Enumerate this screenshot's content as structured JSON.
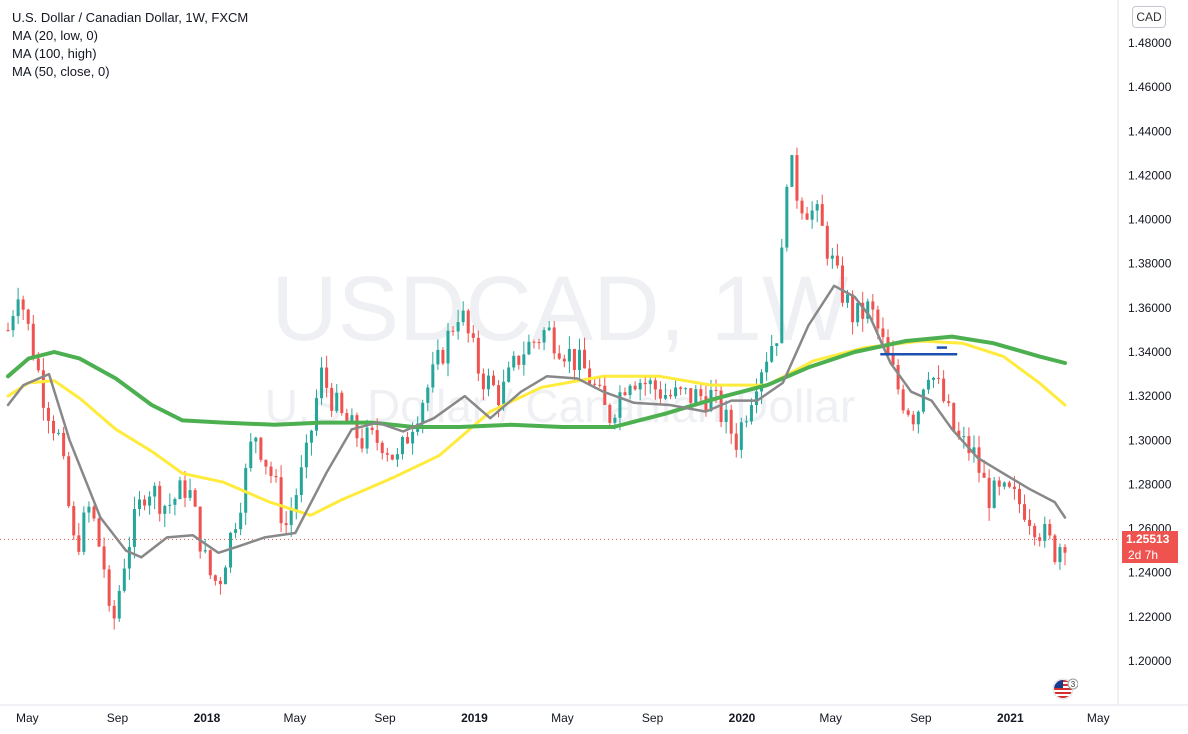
{
  "legend": {
    "title": "U.S. Dollar / Canadian Dollar, 1W, FXCM",
    "indicators": [
      "MA (20, low, 0)",
      "MA (100, high)",
      "MA (50, close, 0)"
    ]
  },
  "watermark": {
    "symbol": "USDCAD, 1W",
    "description": "U.S. Dollar / Canadian Dollar"
  },
  "currency_button": "CAD",
  "last_price": {
    "value": "1.25513",
    "countdown": "2d 7h",
    "color": "#ef5350"
  },
  "flag_badge": "3",
  "colors": {
    "up": "#26a69a",
    "down": "#ef5350",
    "ma20": "#888888",
    "ma100": "#4caf50",
    "ma50": "#ffeb3b",
    "hline": "#1e50b4"
  },
  "chart_data": {
    "type": "candlestick",
    "yaxis": {
      "min": 1.18,
      "max": 1.49,
      "ticks": [
        "1.48000",
        "1.46000",
        "1.44000",
        "1.42000",
        "1.40000",
        "1.38000",
        "1.36000",
        "1.34000",
        "1.32000",
        "1.30000",
        "1.28000",
        "1.26000",
        "1.24000",
        "1.22000",
        "1.20000"
      ]
    },
    "xaxis": {
      "ticks": [
        "May",
        "Sep",
        "2018",
        "May",
        "Sep",
        "2019",
        "May",
        "Sep",
        "2020",
        "May",
        "Sep",
        "2021",
        "May"
      ]
    },
    "close_path": [
      [
        "2017-04-21",
        1.35
      ],
      [
        "2017-05-05",
        1.37
      ],
      [
        "2017-05-19",
        1.35
      ],
      [
        "2017-06-09",
        1.32
      ],
      [
        "2017-06-30",
        1.3
      ],
      [
        "2017-07-21",
        1.25
      ],
      [
        "2017-08-11",
        1.27
      ],
      [
        "2017-09-01",
        1.24
      ],
      [
        "2017-09-08",
        1.21
      ],
      [
        "2017-09-29",
        1.25
      ],
      [
        "2017-10-27",
        1.28
      ],
      [
        "2017-11-24",
        1.27
      ],
      [
        "2017-12-22",
        1.28
      ],
      [
        "2018-01-19",
        1.24
      ],
      [
        "2018-02-02",
        1.235
      ],
      [
        "2018-03-09",
        1.28
      ],
      [
        "2018-03-23",
        1.305
      ],
      [
        "2018-04-20",
        1.28
      ],
      [
        "2018-05-04",
        1.26
      ],
      [
        "2018-06-01",
        1.29
      ],
      [
        "2018-06-22",
        1.33
      ],
      [
        "2018-07-20",
        1.31
      ],
      [
        "2018-08-17",
        1.3
      ],
      [
        "2018-09-14",
        1.3
      ],
      [
        "2018-10-05",
        1.29
      ],
      [
        "2018-10-26",
        1.31
      ],
      [
        "2018-11-23",
        1.33
      ],
      [
        "2018-12-28",
        1.36
      ],
      [
        "2019-01-25",
        1.33
      ],
      [
        "2019-02-22",
        1.32
      ],
      [
        "2019-03-22",
        1.34
      ],
      [
        "2019-04-26",
        1.35
      ],
      [
        "2019-05-24",
        1.34
      ],
      [
        "2019-06-21",
        1.33
      ],
      [
        "2019-07-19",
        1.31
      ],
      [
        "2019-08-16",
        1.33
      ],
      [
        "2019-09-13",
        1.325
      ],
      [
        "2019-10-11",
        1.32
      ],
      [
        "2019-11-08",
        1.32
      ],
      [
        "2019-12-06",
        1.32
      ],
      [
        "2020-01-10",
        1.3
      ],
      [
        "2020-02-07",
        1.33
      ],
      [
        "2020-03-06",
        1.35
      ],
      [
        "2020-03-20",
        1.43
      ],
      [
        "2020-04-03",
        1.41
      ],
      [
        "2020-05-01",
        1.4
      ],
      [
        "2020-05-29",
        1.37
      ],
      [
        "2020-06-19",
        1.355
      ],
      [
        "2020-07-10",
        1.36
      ],
      [
        "2020-07-31",
        1.34
      ],
      [
        "2020-08-21",
        1.32
      ],
      [
        "2020-09-11",
        1.31
      ],
      [
        "2020-09-25",
        1.335
      ],
      [
        "2020-10-16",
        1.32
      ],
      [
        "2020-11-06",
        1.3
      ],
      [
        "2020-11-27",
        1.295
      ],
      [
        "2020-12-18",
        1.275
      ],
      [
        "2021-01-15",
        1.275
      ],
      [
        "2021-02-05",
        1.27
      ],
      [
        "2021-02-26",
        1.26
      ],
      [
        "2021-03-19",
        1.25
      ],
      [
        "2021-04-02",
        1.256
      ]
    ],
    "candle_count": 210,
    "ma20": [
      [
        "2017-04-21",
        1.316
      ],
      [
        "2017-05-12",
        1.325
      ],
      [
        "2017-06-16",
        1.33
      ],
      [
        "2017-07-14",
        1.3
      ],
      [
        "2017-08-25",
        1.265
      ],
      [
        "2017-09-29",
        1.25
      ],
      [
        "2017-10-20",
        1.247
      ],
      [
        "2017-11-24",
        1.256
      ],
      [
        "2017-12-29",
        1.257
      ],
      [
        "2018-02-02",
        1.249
      ],
      [
        "2018-03-02",
        1.252
      ],
      [
        "2018-04-06",
        1.256
      ],
      [
        "2018-05-18",
        1.258
      ],
      [
        "2018-06-29",
        1.285
      ],
      [
        "2018-08-03",
        1.305
      ],
      [
        "2018-09-07",
        1.308
      ],
      [
        "2018-10-12",
        1.304
      ],
      [
        "2018-11-23",
        1.31
      ],
      [
        "2019-01-04",
        1.32
      ],
      [
        "2019-02-08",
        1.31
      ],
      [
        "2019-03-22",
        1.322
      ],
      [
        "2019-04-26",
        1.329
      ],
      [
        "2019-06-07",
        1.328
      ],
      [
        "2019-07-12",
        1.322
      ],
      [
        "2019-08-23",
        1.317
      ],
      [
        "2019-10-11",
        1.316
      ],
      [
        "2019-11-29",
        1.313
      ],
      [
        "2020-01-03",
        1.318
      ],
      [
        "2020-02-07",
        1.318
      ],
      [
        "2020-03-13",
        1.326
      ],
      [
        "2020-04-17",
        1.352
      ],
      [
        "2020-05-22",
        1.37
      ],
      [
        "2020-06-19",
        1.365
      ],
      [
        "2020-07-10",
        1.356
      ],
      [
        "2020-08-07",
        1.335
      ],
      [
        "2020-09-04",
        1.322
      ],
      [
        "2020-10-02",
        1.318
      ],
      [
        "2020-10-30",
        1.305
      ],
      [
        "2020-12-04",
        1.292
      ],
      [
        "2021-01-08",
        1.285
      ],
      [
        "2021-02-12",
        1.278
      ],
      [
        "2021-03-19",
        1.272
      ],
      [
        "2021-04-02",
        1.265
      ]
    ],
    "ma100": [
      [
        "2017-04-21",
        1.329
      ],
      [
        "2017-05-19",
        1.337
      ],
      [
        "2017-06-23",
        1.34
      ],
      [
        "2017-07-28",
        1.337
      ],
      [
        "2017-09-15",
        1.328
      ],
      [
        "2017-11-03",
        1.316
      ],
      [
        "2017-12-15",
        1.309
      ],
      [
        "2018-02-09",
        1.308
      ],
      [
        "2018-04-20",
        1.307
      ],
      [
        "2018-06-22",
        1.308
      ],
      [
        "2018-08-31",
        1.308
      ],
      [
        "2018-10-26",
        1.306
      ],
      [
        "2018-12-28",
        1.306
      ],
      [
        "2019-03-08",
        1.307
      ],
      [
        "2019-05-17",
        1.306
      ],
      [
        "2019-07-26",
        1.306
      ],
      [
        "2019-10-04",
        1.312
      ],
      [
        "2019-12-13",
        1.319
      ],
      [
        "2020-02-21",
        1.325
      ],
      [
        "2020-04-17",
        1.333
      ],
      [
        "2020-06-19",
        1.34
      ],
      [
        "2020-08-28",
        1.345
      ],
      [
        "2020-10-30",
        1.347
      ],
      [
        "2020-12-25",
        1.344
      ],
      [
        "2021-02-26",
        1.338
      ],
      [
        "2021-04-02",
        1.335
      ]
    ],
    "ma50": [
      [
        "2017-04-21",
        1.32
      ],
      [
        "2017-05-19",
        1.326
      ],
      [
        "2017-06-23",
        1.327
      ],
      [
        "2017-07-28",
        1.319
      ],
      [
        "2017-09-15",
        1.305
      ],
      [
        "2017-11-03",
        1.295
      ],
      [
        "2017-12-15",
        1.285
      ],
      [
        "2018-02-09",
        1.281
      ],
      [
        "2018-04-13",
        1.272
      ],
      [
        "2018-06-08",
        1.266
      ],
      [
        "2018-07-20",
        1.273
      ],
      [
        "2018-09-28",
        1.283
      ],
      [
        "2018-11-30",
        1.293
      ],
      [
        "2019-02-08",
        1.313
      ],
      [
        "2019-04-19",
        1.324
      ],
      [
        "2019-07-12",
        1.329
      ],
      [
        "2019-09-27",
        1.329
      ],
      [
        "2019-12-06",
        1.325
      ],
      [
        "2020-02-21",
        1.325
      ],
      [
        "2020-04-24",
        1.336
      ],
      [
        "2020-07-03",
        1.342
      ],
      [
        "2020-09-18",
        1.345
      ],
      [
        "2020-11-13",
        1.344
      ],
      [
        "2021-01-08",
        1.338
      ],
      [
        "2021-02-26",
        1.326
      ],
      [
        "2021-04-02",
        1.316
      ]
    ],
    "horizontal_levels": [
      {
        "value": 1.339,
        "from": "2020-07-24",
        "to": "2020-11-06"
      },
      {
        "value": 1.342,
        "from": "2020-10-09",
        "to": "2020-10-23"
      }
    ],
    "grid": false,
    "legend_position": "top-left"
  }
}
